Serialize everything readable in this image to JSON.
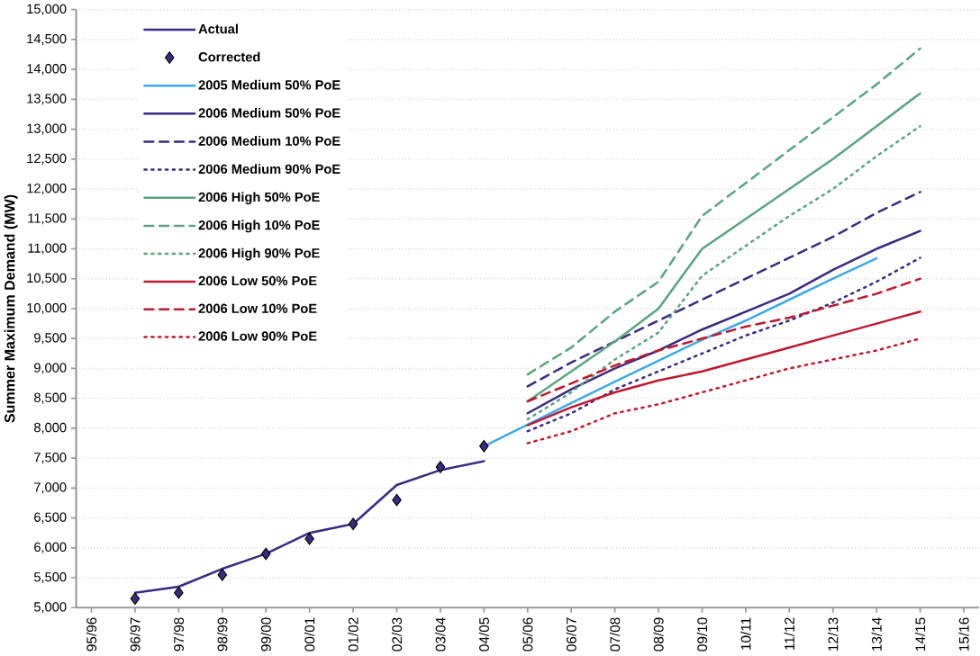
{
  "chart_data": {
    "type": "line",
    "ylabel": "Summer Maximum Demand (MW)",
    "categories": [
      "95/96",
      "96/97",
      "97/98",
      "98/99",
      "99/00",
      "00/01",
      "01/02",
      "02/03",
      "03/04",
      "04/05",
      "05/06",
      "06/07",
      "07/08",
      "08/09",
      "09/10",
      "10/11",
      "11/12",
      "12/13",
      "13/14",
      "14/15",
      "15/16"
    ],
    "ylim": [
      5000,
      15000
    ],
    "yticks": [
      {
        "value": 5000,
        "label": "5,000"
      },
      {
        "value": 5500,
        "label": "5,500"
      },
      {
        "value": 6000,
        "label": "6,000"
      },
      {
        "value": 6500,
        "label": "6,500"
      },
      {
        "value": 7000,
        "label": "7,000"
      },
      {
        "value": 7500,
        "label": "7,500"
      },
      {
        "value": 8000,
        "label": "8,000"
      },
      {
        "value": 8500,
        "label": "8,500"
      },
      {
        "value": 9000,
        "label": "9,000"
      },
      {
        "value": 9500,
        "label": "9,500"
      },
      {
        "value": 10000,
        "label": "10,000"
      },
      {
        "value": 10500,
        "label": "10,500"
      },
      {
        "value": 11000,
        "label": "11,000"
      },
      {
        "value": 11500,
        "label": "11,500"
      },
      {
        "value": 12000,
        "label": "12,000"
      },
      {
        "value": 12500,
        "label": "12,500"
      },
      {
        "value": 13000,
        "label": "13,000"
      },
      {
        "value": 13500,
        "label": "13,500"
      },
      {
        "value": 14000,
        "label": "14,000"
      },
      {
        "value": 14500,
        "label": "14,500"
      },
      {
        "value": 15000,
        "label": "15,000"
      }
    ],
    "grid": "y",
    "legend": "top left",
    "series": [
      {
        "name": "Actual",
        "line_style": "solid",
        "color": "#3b2a82",
        "values": [
          null,
          5250,
          5350,
          5650,
          5900,
          6250,
          6400,
          7050,
          7300,
          7450,
          null,
          null,
          null,
          null,
          null,
          null,
          null,
          null,
          null,
          null,
          null
        ]
      },
      {
        "name": "Corrected",
        "type": "scatter",
        "marker": "diamond",
        "color": "#3b2a82",
        "values": [
          null,
          5150,
          5250,
          5550,
          5900,
          6150,
          6400,
          6800,
          7350,
          7700,
          null,
          null,
          null,
          null,
          null,
          null,
          null,
          null,
          null,
          null,
          null
        ]
      },
      {
        "name": "2005 Medium 50% PoE",
        "line_style": "solid",
        "color": "#3fa9e6",
        "values": [
          null,
          null,
          null,
          null,
          null,
          null,
          null,
          null,
          null,
          7700,
          8060,
          8420,
          8780,
          9130,
          9480,
          9800,
          10150,
          10500,
          10840,
          null,
          null
        ]
      },
      {
        "name": "2006 Medium 50% PoE",
        "line_style": "solid",
        "color": "#3b2a82",
        "values": [
          null,
          null,
          null,
          null,
          null,
          null,
          null,
          null,
          null,
          null,
          8250,
          8650,
          9000,
          9300,
          9650,
          9950,
          10250,
          10650,
          11000,
          11300,
          null
        ]
      },
      {
        "name": "2006 Medium 10% PoE",
        "line_style": "dashed",
        "color": "#3b2a82",
        "values": [
          null,
          null,
          null,
          null,
          null,
          null,
          null,
          null,
          null,
          null,
          8700,
          9100,
          9450,
          9800,
          10150,
          10500,
          10850,
          11200,
          11600,
          11950,
          null
        ]
      },
      {
        "name": "2006 Medium 90% PoE",
        "line_style": "dotted",
        "color": "#3b2a82",
        "values": [
          null,
          null,
          null,
          null,
          null,
          null,
          null,
          null,
          null,
          null,
          7950,
          8250,
          8650,
          8950,
          9250,
          9550,
          9800,
          10100,
          10450,
          10850,
          null
        ]
      },
      {
        "name": "2006 High 50% PoE",
        "line_style": "solid",
        "color": "#5aa47e",
        "values": [
          null,
          null,
          null,
          null,
          null,
          null,
          null,
          null,
          null,
          null,
          8450,
          8950,
          9450,
          10000,
          11000,
          11500,
          12000,
          12500,
          13050,
          13600,
          null
        ]
      },
      {
        "name": "2006 High 10% PoE",
        "line_style": "dashed",
        "color": "#5aa47e",
        "values": [
          null,
          null,
          null,
          null,
          null,
          null,
          null,
          null,
          null,
          null,
          8900,
          9350,
          9950,
          10450,
          11550,
          12100,
          12650,
          13200,
          13750,
          14350,
          null
        ]
      },
      {
        "name": "2006 High 90% PoE",
        "line_style": "dotted",
        "color": "#5aa47e",
        "values": [
          null,
          null,
          null,
          null,
          null,
          null,
          null,
          null,
          null,
          null,
          8150,
          8600,
          9150,
          9600,
          10550,
          11050,
          11550,
          12000,
          12550,
          13050,
          null
        ]
      },
      {
        "name": "2006 Low 50% PoE",
        "line_style": "solid",
        "color": "#c0192f",
        "values": [
          null,
          null,
          null,
          null,
          null,
          null,
          null,
          null,
          null,
          null,
          8050,
          8350,
          8600,
          8800,
          8950,
          9150,
          9350,
          9550,
          9750,
          9950,
          null
        ]
      },
      {
        "name": "2006 Low 10% PoE",
        "line_style": "dashed",
        "color": "#c0192f",
        "values": [
          null,
          null,
          null,
          null,
          null,
          null,
          null,
          null,
          null,
          null,
          8450,
          8750,
          9050,
          9300,
          9500,
          9700,
          9850,
          10050,
          10250,
          10500,
          null
        ]
      },
      {
        "name": "2006 Low 90% PoE",
        "line_style": "dotted",
        "color": "#c0192f",
        "values": [
          null,
          null,
          null,
          null,
          null,
          null,
          null,
          null,
          null,
          null,
          7750,
          7950,
          8250,
          8400,
          8600,
          8800,
          9000,
          9150,
          9300,
          9500,
          null
        ]
      }
    ]
  }
}
